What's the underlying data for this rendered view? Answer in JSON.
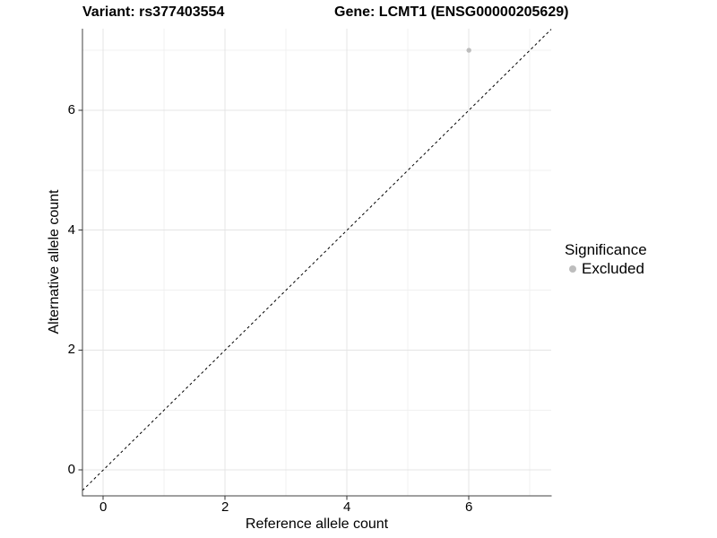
{
  "titles": {
    "variant": "Variant: rs377403554",
    "gene": "Gene: LCMT1 (ENSG00000205629)"
  },
  "chart_data": {
    "type": "scatter",
    "title": "Variant: rs377403554   Gene: LCMT1 (ENSG00000205629)",
    "xlabel": "Reference allele count",
    "ylabel": "Alternative allele count",
    "xlim": [
      -0.34,
      7.35
    ],
    "ylim": [
      -0.43,
      7.36
    ],
    "x_major_ticks": [
      0,
      2,
      4,
      6
    ],
    "x_minor_ticks": [
      1,
      3,
      5,
      7
    ],
    "y_major_ticks": [
      0,
      2,
      4,
      6
    ],
    "y_minor_ticks": [
      1,
      3,
      5,
      7
    ],
    "grid": "major+minor",
    "series": [
      {
        "name": "Excluded",
        "color": "#bdbdbd",
        "point_radius": 2.7,
        "points": [
          {
            "x": 6,
            "y": 7
          }
        ]
      }
    ],
    "reference_line": {
      "kind": "identity",
      "linetype": "dashed",
      "color": "#000000"
    },
    "legend": {
      "title": "Significance",
      "position": "right",
      "items": [
        {
          "label": "Excluded",
          "color": "#bdbdbd"
        }
      ]
    }
  },
  "colors": {
    "background": "#ffffff",
    "grid_major": "#e4e4e4",
    "grid_minor": "#f0f0f0",
    "axis_line": "#404040",
    "tick_mark": "#333333",
    "text": "#000000",
    "point": "#bdbdbd"
  }
}
